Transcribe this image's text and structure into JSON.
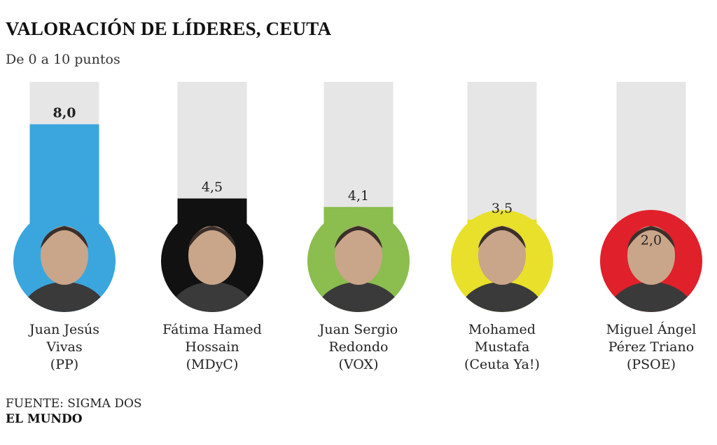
{
  "header": {
    "title": "VALORACIÓN DE LÍDERES, CEUTA",
    "subtitle": "De 0 a 10 puntos"
  },
  "footer": {
    "source_prefix": "FUENTE:",
    "source_name": " SIGMA DOS",
    "brand": "EL MUNDO"
  },
  "chart_data": {
    "type": "bar",
    "title": "VALORACIÓN DE LÍDERES, CEUTA",
    "subtitle": "De 0 a 10 puntos",
    "ylim": [
      0,
      10
    ],
    "categories": [
      "Juan Jesús Vivas (PP)",
      "Fátima Hamed Hossain (MDyC)",
      "Juan Sergio Redondo (VOX)",
      "Mohamed Mustafa (Ceuta Ya!)",
      "Miguel Ángel Pérez Triano (PSOE)"
    ],
    "values": [
      8.0,
      4.5,
      4.1,
      3.5,
      2.0
    ],
    "value_labels": [
      "8,0",
      "4,5",
      "4,1",
      "3,5",
      "2,0"
    ],
    "bold_value_index": 0,
    "name_lines": [
      [
        "Juan Jesús",
        "Vivas",
        "(PP)"
      ],
      [
        "Fátima Hamed",
        "Hossain",
        "(MDyC)"
      ],
      [
        "Juan Sergio",
        "Redondo",
        "(VOX)"
      ],
      [
        "Mohamed",
        "Mustafa",
        "(Ceuta Ya!)"
      ],
      [
        "Miguel Ángel",
        "Pérez Triano",
        "(PSOE)"
      ]
    ],
    "colors": [
      "#3aa6dd",
      "#111111",
      "#8bbd4f",
      "#e8e02a",
      "#e0202a"
    ],
    "track_color": "#e6e6e6",
    "grid": false,
    "legend": "none"
  }
}
